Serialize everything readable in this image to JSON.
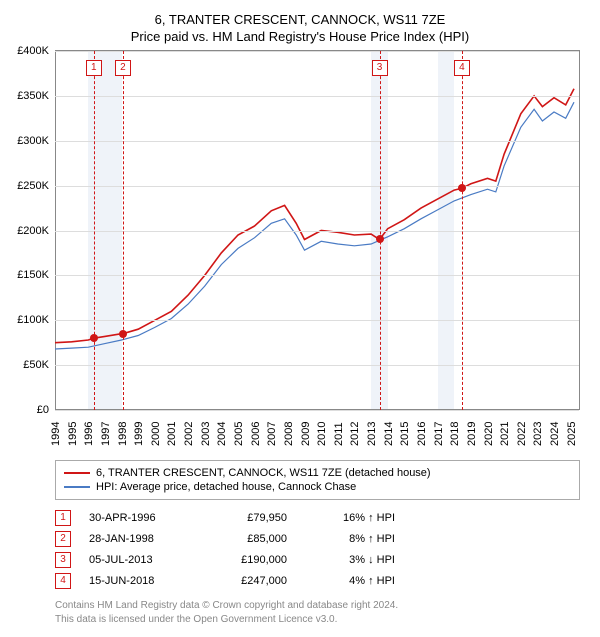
{
  "title": "6, TRANTER CRESCENT, CANNOCK, WS11 7ZE",
  "subtitle": "Price paid vs. HM Land Registry's House Price Index (HPI)",
  "chart": {
    "type": "line",
    "xlim": [
      1994,
      2025.5
    ],
    "ylim": [
      0,
      400000
    ],
    "ytick_step": 50000,
    "y_format_prefix": "£",
    "y_format_suffix": "K",
    "y_divide": 1000,
    "x_ticks": [
      1994,
      1995,
      1996,
      1997,
      1998,
      1999,
      2000,
      2001,
      2002,
      2003,
      2004,
      2005,
      2006,
      2007,
      2008,
      2009,
      2010,
      2011,
      2012,
      2013,
      2014,
      2015,
      2016,
      2017,
      2018,
      2019,
      2020,
      2021,
      2022,
      2023,
      2024,
      2025
    ],
    "grid_color": "#dddddd",
    "axis_color": "#888888",
    "background_color": "#ffffff",
    "shade_color": "#e8eef7",
    "shade_years": [
      [
        1996,
        1997
      ],
      [
        1997,
        1998
      ],
      [
        2013,
        2014
      ],
      [
        2017,
        2018
      ]
    ],
    "vline_color": "#d01616",
    "vlines": [
      1996.33,
      1998.08,
      2013.51,
      2018.46
    ],
    "marker_labels_top_y": 390000,
    "series": [
      {
        "name": "6, TRANTER CRESCENT, CANNOCK, WS11 7ZE (detached house)",
        "color": "#d01616",
        "width": 1.6,
        "points": [
          [
            1994,
            75000
          ],
          [
            1995,
            76000
          ],
          [
            1996,
            78000
          ],
          [
            1996.33,
            79950
          ],
          [
            1997,
            82000
          ],
          [
            1998,
            85000
          ],
          [
            1998.08,
            85000
          ],
          [
            1999,
            90000
          ],
          [
            2000,
            100000
          ],
          [
            2001,
            110000
          ],
          [
            2002,
            128000
          ],
          [
            2003,
            150000
          ],
          [
            2004,
            175000
          ],
          [
            2005,
            195000
          ],
          [
            2006,
            205000
          ],
          [
            2007,
            222000
          ],
          [
            2007.8,
            228000
          ],
          [
            2008.5,
            208000
          ],
          [
            2009,
            190000
          ],
          [
            2010,
            200000
          ],
          [
            2011,
            198000
          ],
          [
            2012,
            195000
          ],
          [
            2013,
            196000
          ],
          [
            2013.51,
            190000
          ],
          [
            2014,
            202000
          ],
          [
            2015,
            212000
          ],
          [
            2016,
            225000
          ],
          [
            2017,
            235000
          ],
          [
            2018,
            245000
          ],
          [
            2018.46,
            247000
          ],
          [
            2019,
            252000
          ],
          [
            2020,
            258000
          ],
          [
            2020.5,
            255000
          ],
          [
            2021,
            285000
          ],
          [
            2022,
            330000
          ],
          [
            2022.8,
            350000
          ],
          [
            2023.3,
            338000
          ],
          [
            2024,
            348000
          ],
          [
            2024.7,
            340000
          ],
          [
            2025.2,
            358000
          ]
        ]
      },
      {
        "name": "HPI: Average price, detached house, Cannock Chase",
        "color": "#4a7bc4",
        "width": 1.2,
        "points": [
          [
            1994,
            68000
          ],
          [
            1995,
            69000
          ],
          [
            1996,
            70000
          ],
          [
            1997,
            74000
          ],
          [
            1998,
            78000
          ],
          [
            1999,
            83000
          ],
          [
            2000,
            92000
          ],
          [
            2001,
            102000
          ],
          [
            2002,
            118000
          ],
          [
            2003,
            138000
          ],
          [
            2004,
            162000
          ],
          [
            2005,
            180000
          ],
          [
            2006,
            192000
          ],
          [
            2007,
            208000
          ],
          [
            2007.8,
            213000
          ],
          [
            2008.5,
            195000
          ],
          [
            2009,
            178000
          ],
          [
            2010,
            188000
          ],
          [
            2011,
            185000
          ],
          [
            2012,
            183000
          ],
          [
            2013,
            185000
          ],
          [
            2014,
            193000
          ],
          [
            2015,
            202000
          ],
          [
            2016,
            213000
          ],
          [
            2017,
            223000
          ],
          [
            2018,
            233000
          ],
          [
            2019,
            240000
          ],
          [
            2020,
            246000
          ],
          [
            2020.5,
            243000
          ],
          [
            2021,
            272000
          ],
          [
            2022,
            315000
          ],
          [
            2022.8,
            335000
          ],
          [
            2023.3,
            322000
          ],
          [
            2024,
            332000
          ],
          [
            2024.7,
            325000
          ],
          [
            2025.2,
            343000
          ]
        ]
      }
    ],
    "sale_markers": [
      {
        "n": "1",
        "x": 1996.33,
        "y": 79950,
        "color": "#d01616"
      },
      {
        "n": "2",
        "x": 1998.08,
        "y": 85000,
        "color": "#d01616"
      },
      {
        "n": "3",
        "x": 2013.51,
        "y": 190000,
        "color": "#d01616"
      },
      {
        "n": "4",
        "x": 2018.46,
        "y": 247000,
        "color": "#d01616"
      }
    ]
  },
  "legend": [
    {
      "color": "#d01616",
      "label": "6, TRANTER CRESCENT, CANNOCK, WS11 7ZE (detached house)"
    },
    {
      "color": "#4a7bc4",
      "label": "HPI: Average price, detached house, Cannock Chase"
    }
  ],
  "sales": [
    {
      "n": "1",
      "date": "30-APR-1996",
      "price": "£79,950",
      "pct": "16% ↑ HPI"
    },
    {
      "n": "2",
      "date": "28-JAN-1998",
      "price": "£85,000",
      "pct": "8% ↑ HPI"
    },
    {
      "n": "3",
      "date": "05-JUL-2013",
      "price": "£190,000",
      "pct": "3% ↓ HPI"
    },
    {
      "n": "4",
      "date": "15-JUN-2018",
      "price": "£247,000",
      "pct": "4% ↑ HPI"
    }
  ],
  "footer": {
    "line1": "Contains HM Land Registry data © Crown copyright and database right 2024.",
    "line2": "This data is licensed under the Open Government Licence v3.0."
  }
}
